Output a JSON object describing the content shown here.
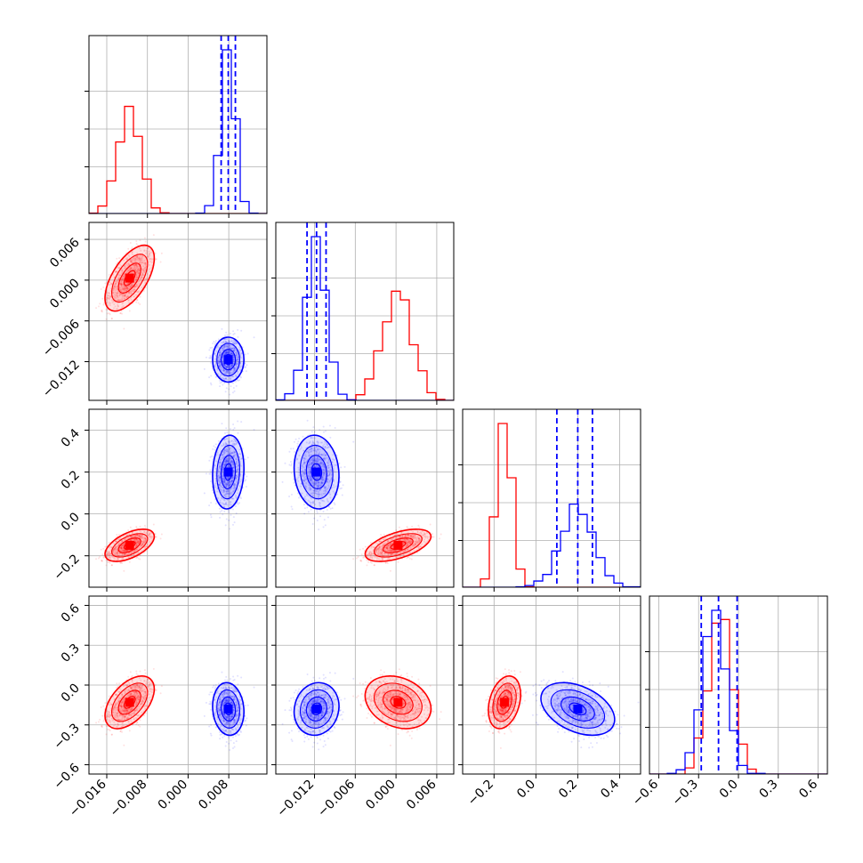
{
  "colors": {
    "red": "#ff0000",
    "blue": "#0000ff",
    "grid": "#b0b0b0",
    "frame": "#000000"
  },
  "chart_data": {
    "type": "corner",
    "grid": true,
    "series": [
      {
        "color": "#ff0000",
        "means": [
          -0.0115,
          0.0003,
          -0.15,
          -0.13
        ],
        "sds": [
          0.0022,
          0.0022,
          0.035,
          0.09
        ],
        "corr": [
          [
            0,
            1,
            0.6
          ],
          [
            0,
            2,
            0.55
          ],
          [
            0,
            3,
            0.5
          ],
          [
            1,
            2,
            0.55
          ],
          [
            1,
            3,
            -0.25
          ],
          [
            2,
            3,
            0.3
          ]
        ]
      },
      {
        "color": "#0000ff",
        "means": [
          0.0079,
          -0.0117,
          0.2,
          -0.18
        ],
        "sds": [
          0.0014,
          0.0015,
          0.08,
          0.09
        ],
        "corr": [
          [
            0,
            1,
            0.0
          ],
          [
            0,
            2,
            0.1
          ],
          [
            0,
            3,
            -0.1
          ],
          [
            1,
            2,
            -0.1
          ],
          [
            1,
            3,
            0.1
          ],
          [
            2,
            3,
            -0.4
          ]
        ]
      }
    ],
    "dims": [
      {
        "range": [
          -0.0195,
          0.0155
        ],
        "ticks": [
          -0.016,
          -0.008,
          0.0,
          0.008
        ],
        "tick_labels": [
          "−0.016",
          "−0.008",
          "0.000",
          "0.008"
        ],
        "quantiles": [
          0.0065,
          0.0079,
          0.0093
        ]
      },
      {
        "range": [
          -0.0177,
          0.0085
        ],
        "ticks": [
          -0.012,
          -0.006,
          0.0,
          0.006
        ],
        "tick_labels": [
          "−0.012",
          "−0.006",
          "0.000",
          "0.006"
        ],
        "quantiles": [
          -0.0131,
          -0.0117,
          -0.0103
        ]
      },
      {
        "range": [
          -0.35,
          0.5
        ],
        "ticks": [
          -0.2,
          0.0,
          0.2,
          0.4
        ],
        "tick_labels": [
          "−0.2",
          "0.0",
          "0.2",
          "0.4"
        ],
        "quantiles": [
          0.1,
          0.2,
          0.27
        ]
      },
      {
        "range": [
          -0.67,
          0.67
        ],
        "ticks": [
          -0.6,
          -0.3,
          0.0,
          0.3,
          0.6
        ],
        "tick_labels": [
          "−0.6",
          "−0.3",
          "0.0",
          "0.3",
          "0.6"
        ],
        "quantiles": [
          -0.28,
          -0.15,
          -0.01
        ]
      }
    ]
  }
}
